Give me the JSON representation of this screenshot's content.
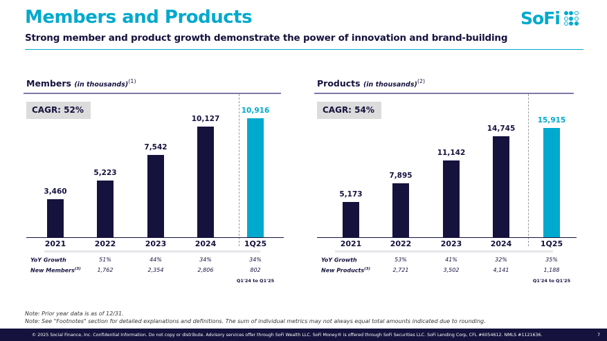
{
  "header": {
    "title": "Members and Products",
    "subtitle": "Strong member and product growth demonstrate the power of innovation and brand-building",
    "logo": "SoFi"
  },
  "colors": {
    "bar": "#15123d",
    "highlight": "#00a9ce",
    "accent": "#00a9ce"
  },
  "chart_data": [
    {
      "type": "bar",
      "title": "Members",
      "title_note": "(in thousands)",
      "footnote": "(1)",
      "cagr": "CAGR: 52%",
      "categories": [
        "2021",
        "2022",
        "2023",
        "2024",
        "1Q25"
      ],
      "values": [
        3460,
        5223,
        7542,
        10127,
        10916
      ],
      "value_labels": [
        "3,460",
        "5,223",
        "7,542",
        "10,127",
        "10,916"
      ],
      "highlight_index": 4,
      "table": {
        "rows": [
          {
            "label": "YoY Growth",
            "sup": "",
            "values": [
              "51%",
              "44%",
              "34%",
              "34%"
            ]
          },
          {
            "label": "New Members",
            "sup": "(3)",
            "values": [
              "1,762",
              "2,354",
              "2,806",
              "802"
            ]
          }
        ],
        "last_note": "Q1'24 to Q1'25"
      }
    },
    {
      "type": "bar",
      "title": "Products",
      "title_note": "(in thousands)",
      "footnote": "(2)",
      "cagr": "CAGR: 54%",
      "categories": [
        "2021",
        "2022",
        "2023",
        "2024",
        "1Q25"
      ],
      "values": [
        5173,
        7895,
        11142,
        14745,
        15915
      ],
      "value_labels": [
        "5,173",
        "7,895",
        "11,142",
        "14,745",
        "15,915"
      ],
      "highlight_index": 4,
      "table": {
        "rows": [
          {
            "label": "YoY Growth",
            "sup": "",
            "values": [
              "53%",
              "41%",
              "32%",
              "35%"
            ]
          },
          {
            "label": "New Products",
            "sup": "(3)",
            "values": [
              "2,721",
              "3,502",
              "4,141",
              "1,188"
            ]
          }
        ],
        "last_note": "Q1'24 to Q1'25"
      }
    }
  ],
  "notes": [
    "Note: Prior year data is as of 12/31.",
    "Note: See \"Footnotes\" section for detailed explanations and definitions. The sum of individual metrics may not always equal total amounts indicated due to rounding."
  ],
  "footer": {
    "text": "© 2025 Social Finance, Inc. Confidential Information. Do not copy or distribute. Advisory services offer through SoFi Wealth LLC. SoFi Money® is offered through SoFi Securities LLC. SoFi Lending Corp, CFL #6054612. NMLS #1121636.",
    "page": "7"
  }
}
